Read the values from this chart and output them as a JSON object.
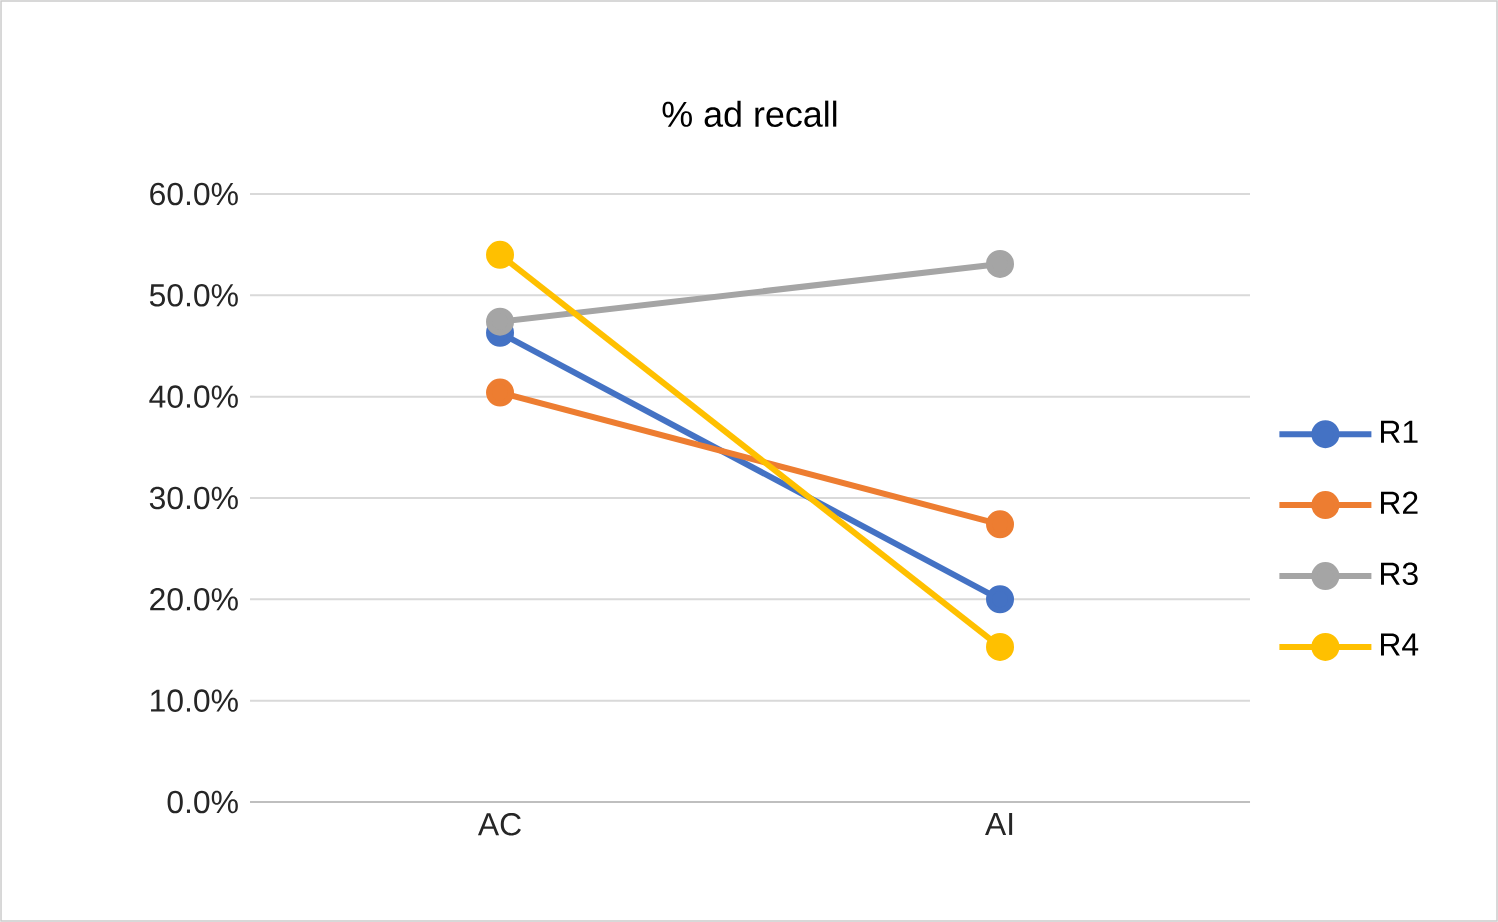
{
  "chart_data": {
    "type": "line",
    "title": "% ad recall",
    "categories": [
      "AC",
      "AI"
    ],
    "series": [
      {
        "name": "R1",
        "color": "#4472c4",
        "values": [
          46.3,
          20.0
        ]
      },
      {
        "name": "R2",
        "color": "#ed7d31",
        "values": [
          40.4,
          27.4
        ]
      },
      {
        "name": "R3",
        "color": "#a5a5a5",
        "values": [
          47.4,
          53.1
        ]
      },
      {
        "name": "R4",
        "color": "#ffc000",
        "values": [
          54.0,
          15.3
        ]
      }
    ],
    "ylim": [
      0,
      60
    ],
    "yticks": [
      {
        "value": 0,
        "label": "0.0%"
      },
      {
        "value": 10,
        "label": "10.0%"
      },
      {
        "value": 20,
        "label": "20.0%"
      },
      {
        "value": 30,
        "label": "30.0%"
      },
      {
        "value": 40,
        "label": "40.0%"
      },
      {
        "value": 50,
        "label": "50.0%"
      },
      {
        "value": 60,
        "label": "60.0%"
      }
    ],
    "grid": "y",
    "legend": "right",
    "marker": "circle",
    "line_style": "solid"
  }
}
